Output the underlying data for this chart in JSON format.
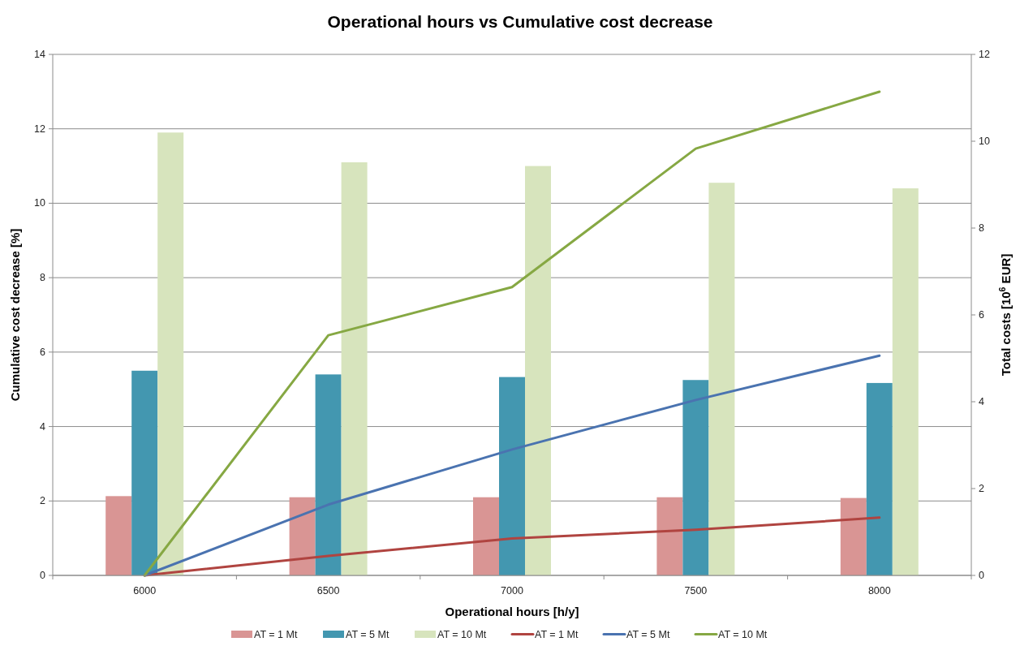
{
  "chart_data": {
    "type": "bar",
    "title": "Operational hours vs Cumulative cost decrease",
    "xlabel": "Operational hours [h/y]",
    "ylabel": "Cumulative cost decrease [%]",
    "y2label": "Total costs [10$^{6}$ EUR]",
    "categories": [
      "6000",
      "6500",
      "7000",
      "7500",
      "8000"
    ],
    "series": [
      {
        "name": "AT = 1 Mt",
        "color": "#d99594",
        "values": [
          2.13,
          2.1,
          2.1,
          2.1,
          2.08
        ]
      },
      {
        "name": "AT = 5 Mt",
        "color": "#4397b0",
        "values": [
          5.5,
          5.4,
          5.33,
          5.25,
          5.17
        ]
      },
      {
        "name": "AT = 10 Mt",
        "color": "#d7e4bd",
        "values": [
          11.9,
          11.1,
          11.0,
          10.55,
          10.4
        ]
      },
      {
        "name": "AT = 1 Mt",
        "type": "line",
        "axis": "y2",
        "color": "#b04440",
        "values": [
          0,
          0.45,
          0.85,
          1.05,
          1.33
        ]
      },
      {
        "name": "AT = 5 Mt",
        "type": "line",
        "axis": "y2",
        "color": "#4a73b0",
        "values": [
          0,
          1.63,
          2.9,
          4.04,
          5.06
        ]
      },
      {
        "name": "AT = 10 Mt",
        "type": "line",
        "axis": "y2",
        "color": "#86a843",
        "values": [
          0,
          5.53,
          6.64,
          9.83,
          11.14
        ]
      }
    ],
    "ylim": [
      0,
      14
    ],
    "yticks": [
      0,
      2,
      4,
      6,
      8,
      10,
      12,
      14
    ],
    "y2lim": [
      0,
      12
    ],
    "y2ticks": [
      0,
      2,
      4,
      6,
      8,
      10,
      12
    ],
    "grid": "y",
    "legend": "bottom",
    "marker": "none",
    "line_style": "solid"
  }
}
